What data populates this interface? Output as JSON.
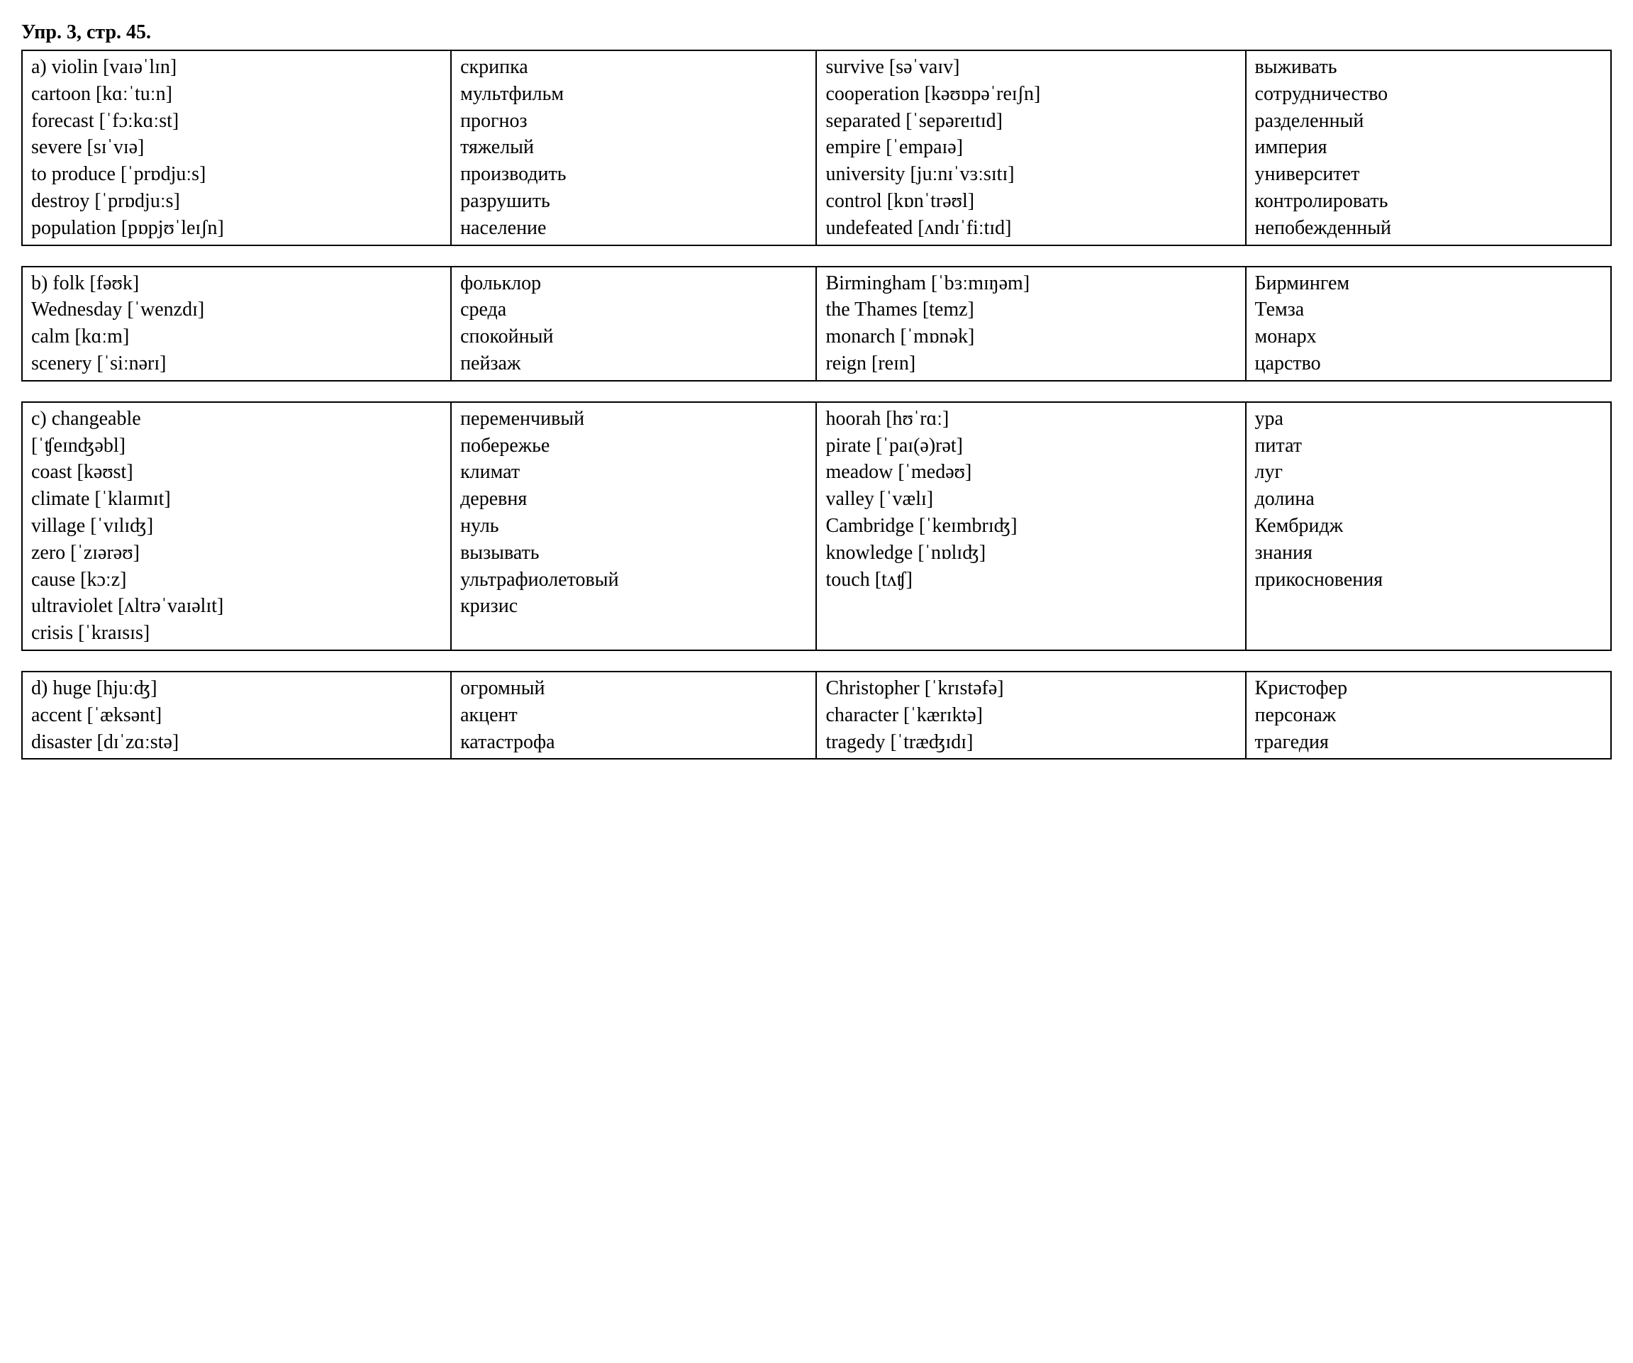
{
  "title": "Упр. 3, стр. 45.",
  "tables": {
    "a": {
      "left_en": [
        "a) violin [vaɪəˈlɪn]",
        "cartoon [kɑːˈtuːn]",
        "forecast [ˈfɔːkɑːst]",
        "severe [sɪˈvɪə]",
        "to produce [ˈprɒdjuːs]",
        "destroy [ˈprɒdjuːs]",
        "population [pɒpjʊˈleɪʃn]"
      ],
      "left_ru": [
        "скрипка",
        "мультфильм",
        "прогноз",
        "тяжелый",
        "производить",
        "разрушить",
        "население"
      ],
      "right_en": [
        "survive [səˈvaɪv]",
        "cooperation [kəʊɒpəˈreɪʃn]",
        "separated [ˈsepəreɪtɪd]",
        "empire [ˈempaɪə]",
        "university [juːnɪˈvɜːsɪtɪ]",
        "control [kɒnˈtrəʊl]",
        "undefeated [ʌndɪˈfiːtɪd]"
      ],
      "right_ru": [
        "выживать",
        "сотрудничество",
        "разделенный",
        "империя",
        "университет",
        "контролировать",
        "непобежденный"
      ]
    },
    "b": {
      "left_en": [
        "b) folk [fəʊk]",
        "Wednesday [ˈwenzdɪ]",
        "calm [kɑːm]",
        "scenery [ˈsiːnərɪ]"
      ],
      "left_ru": [
        "фольклор",
        "среда",
        "спокойный",
        "пейзаж"
      ],
      "right_en": [
        "Birmingham [ˈbɜːmɪŋəm]",
        "the Thames [temz]",
        "monarch [ˈmɒnək]",
        "reign [reɪn]"
      ],
      "right_ru": [
        "Бирмингем",
        "Темза",
        "монарх",
        "царство"
      ]
    },
    "c": {
      "left_en": [
        "c) changeable",
        "[ˈʧeɪnʤəbl]",
        "coast [kəʊst]",
        "climate [ˈklaɪmɪt]",
        "village [ˈvɪlɪʤ]",
        "zero [ˈzɪərəʊ]",
        "cause [kɔːz]",
        "ultraviolet [ʌltrəˈvaɪəlɪt]",
        "crisis [ˈkraɪsɪs]"
      ],
      "left_ru": [
        "переменчивый",
        "побережье",
        "климат",
        "деревня",
        "нуль",
        "вызывать",
        "ультрафиолетовый",
        "кризис"
      ],
      "right_en": [
        "hoorah [hʊˈrɑː]",
        "pirate [ˈpaɪ(ə)rət]",
        "meadow [ˈmedəʊ]",
        "valley [ˈvælɪ]",
        "Cambridge [ˈkeɪmbrɪʤ]",
        "knowledge [ˈnɒlɪʤ]",
        "touch [tʌʧ]"
      ],
      "right_ru": [
        "ура",
        "питат",
        "луг",
        "долина",
        "Кембридж",
        "знания",
        "прикосновения"
      ]
    },
    "d": {
      "left_en": [
        "d) huge [hjuːʤ]",
        "accent [ˈæksənt]",
        "disaster [dɪˈzɑːstə]"
      ],
      "left_ru": [
        "огромный",
        "акцент",
        "катастрофа"
      ],
      "right_en": [
        "Christopher [ˈkrɪstəfə]",
        "character [ˈkærɪktə]",
        "tragedy [ˈtræʤɪdɪ]"
      ],
      "right_ru": [
        "Кристофер",
        "персонаж",
        "трагедия"
      ]
    }
  }
}
